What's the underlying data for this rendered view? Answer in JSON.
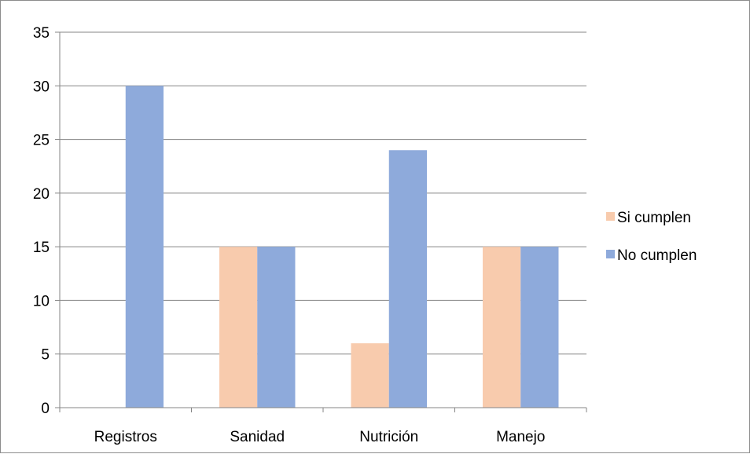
{
  "chart_data": {
    "type": "bar",
    "title": "",
    "xlabel": "",
    "ylabel": "",
    "categories": [
      "Registros",
      "Sanidad",
      "Nutrición",
      "Manejo"
    ],
    "series": [
      {
        "name": "Si cumplen",
        "values": [
          0,
          15,
          6,
          15
        ],
        "color": "#f8cbad"
      },
      {
        "name": "No cumplen",
        "values": [
          30,
          15,
          24,
          15
        ],
        "color": "#8eaadb"
      }
    ],
    "ylim": [
      0,
      35
    ],
    "yticks": [
      0,
      5,
      10,
      15,
      20,
      25,
      30,
      35
    ],
    "grid": true,
    "legend_position": "right"
  }
}
